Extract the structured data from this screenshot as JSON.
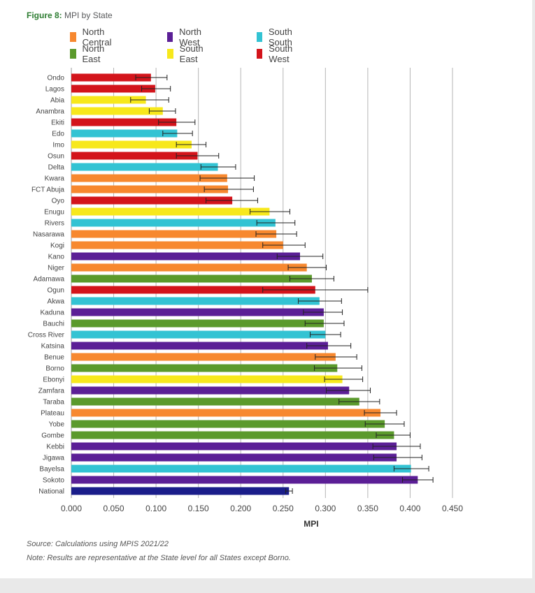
{
  "figure": {
    "number_label": "Figure 8:",
    "title": "MPI by State"
  },
  "legend": [
    {
      "label": "North Central",
      "color": "#f7882f"
    },
    {
      "label": "North East",
      "color": "#5b9a2c"
    },
    {
      "label": "North West",
      "color": "#5b1f96"
    },
    {
      "label": "South East",
      "color": "#f7e81c"
    },
    {
      "label": "South South",
      "color": "#33c3d3"
    },
    {
      "label": "South West",
      "color": "#d3141b"
    }
  ],
  "chart_data": {
    "type": "bar",
    "orientation": "horizontal",
    "xlabel": "MPI",
    "ylabel": "",
    "xlim": [
      0,
      0.45
    ],
    "xticks": [
      "0.000",
      "0.050",
      "0.100",
      "0.150",
      "0.200",
      "0.250",
      "0.300",
      "0.350",
      "0.400",
      "0.450"
    ],
    "grid": "vertical",
    "error_bars": true,
    "categories": [
      "Ondo",
      "Lagos",
      "Abia",
      "Anambra",
      "Ekiti",
      "Edo",
      "Imo",
      "Osun",
      "Delta",
      "Kwara",
      "FCT Abuja",
      "Oyo",
      "Enugu",
      "Rivers",
      "Nasarawa",
      "Kogi",
      "Kano",
      "Niger",
      "Adamawa",
      "Ogun",
      "Akwa",
      "Kaduna",
      "Bauchi",
      "Cross River",
      "Katsina",
      "Benue",
      "Borno",
      "Ebonyi",
      "Zamfara",
      "Taraba",
      "Plateau",
      "Yobe",
      "Gombe",
      "Kebbi",
      "Jigawa",
      "Bayelsa",
      "Sokoto",
      "National"
    ],
    "zones": [
      "South West",
      "South West",
      "South East",
      "South East",
      "South West",
      "South South",
      "South East",
      "South West",
      "South South",
      "North Central",
      "North Central",
      "South West",
      "South East",
      "South South",
      "North Central",
      "North Central",
      "North West",
      "North Central",
      "North East",
      "South West",
      "South South",
      "North West",
      "North East",
      "South South",
      "North West",
      "North Central",
      "North East",
      "South East",
      "North West",
      "North East",
      "North Central",
      "North East",
      "North East",
      "North West",
      "North West",
      "South South",
      "North West",
      "National"
    ],
    "zone_colors": {
      "North Central": "#f7882f",
      "North East": "#5b9a2c",
      "North West": "#5b1f96",
      "South East": "#f7e81c",
      "South South": "#33c3d3",
      "South West": "#d3141b",
      "National": "#1a1d8a"
    },
    "values": [
      0.094,
      0.099,
      0.088,
      0.108,
      0.124,
      0.125,
      0.142,
      0.149,
      0.173,
      0.184,
      0.185,
      0.19,
      0.234,
      0.241,
      0.242,
      0.25,
      0.27,
      0.278,
      0.284,
      0.288,
      0.293,
      0.298,
      0.298,
      0.3,
      0.303,
      0.312,
      0.314,
      0.32,
      0.328,
      0.34,
      0.365,
      0.37,
      0.381,
      0.384,
      0.384,
      0.401,
      0.409,
      0.257
    ],
    "ci_low": [
      0.076,
      0.083,
      0.07,
      0.092,
      0.103,
      0.108,
      0.124,
      0.124,
      0.153,
      0.152,
      0.157,
      0.159,
      0.211,
      0.219,
      0.218,
      0.226,
      0.243,
      0.256,
      0.258,
      0.226,
      0.268,
      0.274,
      0.276,
      0.282,
      0.278,
      0.288,
      0.287,
      0.299,
      0.301,
      0.316,
      0.346,
      0.347,
      0.36,
      0.356,
      0.357,
      0.381,
      0.391,
      0.253
    ],
    "ci_high": [
      0.113,
      0.117,
      0.115,
      0.123,
      0.146,
      0.143,
      0.159,
      0.174,
      0.194,
      0.216,
      0.215,
      0.22,
      0.258,
      0.264,
      0.266,
      0.276,
      0.297,
      0.301,
      0.31,
      0.35,
      0.319,
      0.32,
      0.322,
      0.318,
      0.33,
      0.337,
      0.343,
      0.344,
      0.353,
      0.364,
      0.384,
      0.393,
      0.4,
      0.412,
      0.414,
      0.422,
      0.427,
      0.261
    ]
  },
  "footnotes": {
    "source": "Source: Calculations using MPIS 2021/22",
    "note": "Note: Results are representative at the State level for all States except Borno."
  }
}
